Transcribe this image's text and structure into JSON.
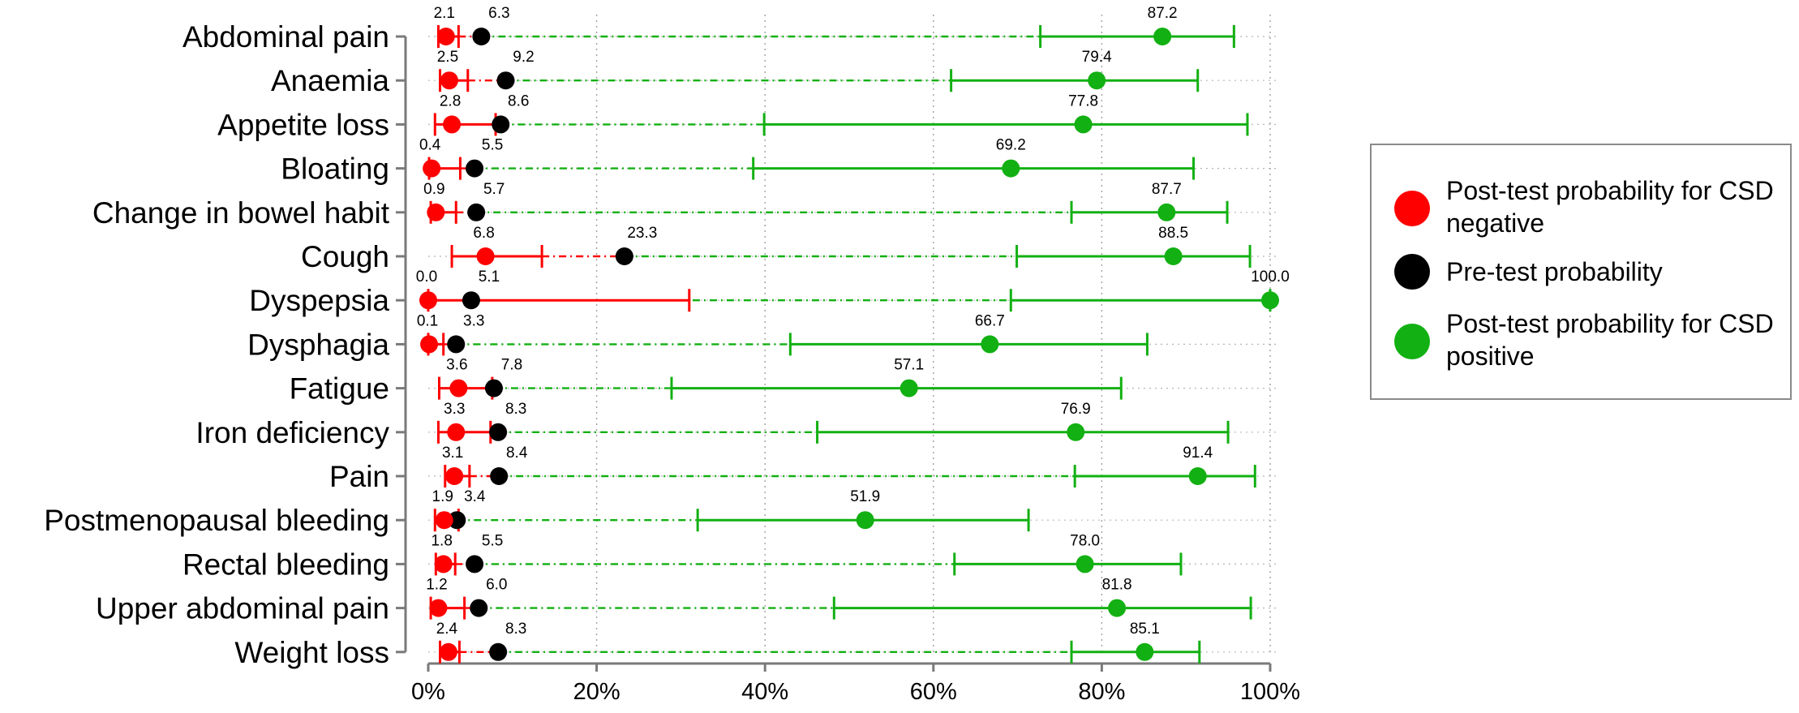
{
  "chart_data": {
    "type": "forest",
    "categories": [
      "Abdominal pain",
      "Anaemia",
      "Appetite loss",
      "Bloating",
      "Change in bowel habit",
      "Cough",
      "Dyspepsia",
      "Dysphagia",
      "Fatigue",
      "Iron deficiency",
      "Pain",
      "Postmenopausal bleeding",
      "Rectal bleeding",
      "Upper abdominal pain",
      "Weight loss"
    ],
    "xlim": [
      0,
      100
    ],
    "xticks": [
      0,
      20,
      40,
      60,
      80,
      100
    ],
    "xtick_labels": [
      "0%",
      "20%",
      "40%",
      "60%",
      "80%",
      "100%"
    ],
    "grid": "vertical dotted",
    "legend_position": "right",
    "series": [
      {
        "name": "Post-test probability for CSD negative",
        "color": "#ff0000",
        "values": [
          2.1,
          2.5,
          2.8,
          0.4,
          0.9,
          6.8,
          0.0,
          0.1,
          3.6,
          3.3,
          3.1,
          1.9,
          1.8,
          1.2,
          2.4
        ],
        "labels": [
          "2.1",
          "2.5",
          "2.8",
          "0.4",
          "0.9",
          "6.8",
          "0.0",
          "0.1",
          "3.6",
          "3.3",
          "3.1",
          "1.9",
          "1.8",
          "1.2",
          "2.4"
        ],
        "ci_low": [
          1.2,
          1.4,
          0.8,
          0.1,
          0.3,
          2.8,
          0.0,
          0.0,
          1.3,
          1.2,
          2.0,
          0.8,
          0.9,
          0.3,
          1.4
        ],
        "ci_high": [
          3.6,
          4.7,
          8.0,
          3.8,
          3.3,
          13.5,
          31.0,
          1.8,
          7.6,
          7.4,
          4.9,
          3.6,
          3.2,
          4.3,
          3.7
        ]
      },
      {
        "name": "Pre-test probability",
        "color": "#000000",
        "values": [
          6.3,
          9.2,
          8.6,
          5.5,
          5.7,
          23.3,
          5.1,
          3.3,
          7.8,
          8.3,
          8.4,
          3.4,
          5.5,
          6.0,
          8.3
        ],
        "labels": [
          "6.3",
          "9.2",
          "8.6",
          "5.5",
          "5.7",
          "23.3",
          "5.1",
          "3.3",
          "7.8",
          "8.3",
          "8.4",
          "3.4",
          "5.5",
          "6.0",
          "8.3"
        ]
      },
      {
        "name": "Post-test probability for CSD positive",
        "color": "#12b012",
        "values": [
          87.2,
          79.4,
          77.8,
          69.2,
          87.7,
          88.5,
          100.0,
          66.7,
          57.1,
          76.9,
          91.4,
          51.9,
          78.0,
          81.8,
          85.1
        ],
        "labels": [
          "87.2",
          "79.4",
          "77.8",
          "69.2",
          "87.7",
          "88.5",
          "100.0",
          "66.7",
          "57.1",
          "76.9",
          "91.4",
          "51.9",
          "78.0",
          "81.8",
          "85.1"
        ],
        "ci_low": [
          72.7,
          62.1,
          39.9,
          38.6,
          76.4,
          69.9,
          69.2,
          43.0,
          28.9,
          46.2,
          76.8,
          32.0,
          62.5,
          48.2,
          76.4
        ],
        "ci_high": [
          95.7,
          91.4,
          97.3,
          90.9,
          94.9,
          97.6,
          100.0,
          85.4,
          82.3,
          95.0,
          98.2,
          71.3,
          89.4,
          97.7,
          91.6
        ]
      }
    ]
  },
  "legend": {
    "items": [
      {
        "text": "Post-test probability for CSD negative",
        "color": "#ff0000"
      },
      {
        "text": "Pre-test probability",
        "color": "#000000"
      },
      {
        "text": "Post-test probability for CSD positive",
        "color": "#12b012"
      }
    ]
  }
}
